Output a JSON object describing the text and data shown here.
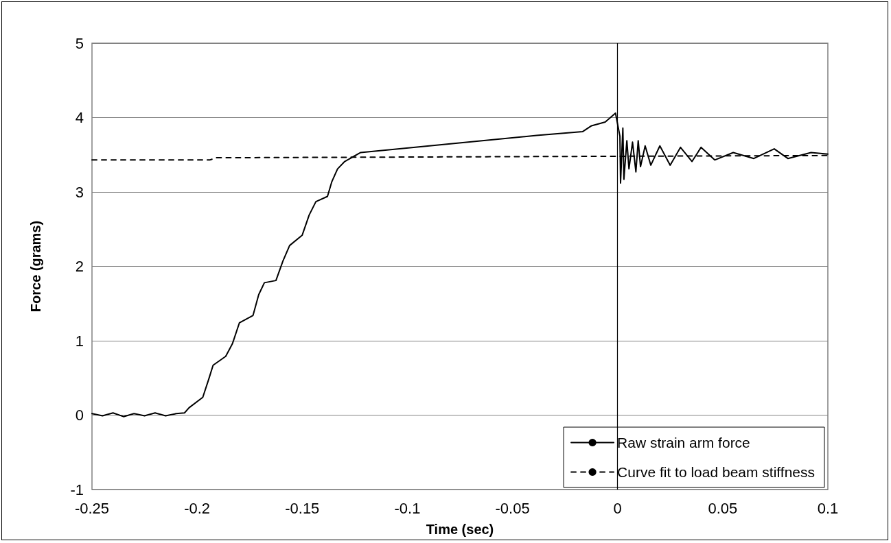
{
  "chart_data": {
    "type": "line",
    "xlabel": "Time (sec)",
    "ylabel": "Force (grams)",
    "xlim": [
      -0.25,
      0.1
    ],
    "xticks": [
      -0.25,
      -0.2,
      -0.15,
      -0.1,
      -0.05,
      0,
      0.05,
      0.1
    ],
    "ylim": [
      -1,
      5
    ],
    "yticks": [
      -1,
      0,
      1,
      2,
      3,
      4,
      5
    ],
    "grid": "y",
    "legend": "bottom right",
    "marker": "none",
    "ref_lines": [
      {
        "axis": "x",
        "value": 0,
        "color": "#000000"
      }
    ],
    "series": [
      {
        "name": "Raw strain arm force",
        "color": "#000000",
        "line_style": "solid",
        "x": [
          -0.25,
          -0.245,
          -0.24,
          -0.235,
          -0.23,
          -0.225,
          -0.22,
          -0.215,
          -0.21,
          -0.206,
          -0.2038,
          -0.1973,
          -0.1945,
          -0.1924,
          -0.1864,
          -0.1832,
          -0.1799,
          -0.1734,
          -0.1707,
          -0.168,
          -0.1625,
          -0.1592,
          -0.156,
          -0.15,
          -0.1467,
          -0.1435,
          -0.138,
          -0.1359,
          -0.1332,
          -0.1298,
          -0.1222,
          -0.1037,
          -0.082,
          -0.0602,
          -0.0385,
          -0.0167,
          -0.0124,
          -0.0059,
          -0.001,
          0.0011,
          0.0014,
          0.0025,
          0.003,
          0.0044,
          0.0054,
          0.0071,
          0.0087,
          0.0098,
          0.0109,
          0.0131,
          0.0158,
          0.0201,
          0.025,
          0.0299,
          0.0354,
          0.0397,
          0.0462,
          0.055,
          0.0648,
          0.0745,
          0.081,
          0.092,
          0.1
        ],
        "values": [
          0.02,
          -0.01,
          0.03,
          -0.02,
          0.02,
          -0.01,
          0.03,
          -0.01,
          0.02,
          0.03,
          0.1,
          0.24,
          0.48,
          0.67,
          0.79,
          0.96,
          1.24,
          1.34,
          1.62,
          1.78,
          1.81,
          2.07,
          2.28,
          2.42,
          2.69,
          2.87,
          2.94,
          3.14,
          3.31,
          3.41,
          3.53,
          3.58,
          3.64,
          3.7,
          3.76,
          3.81,
          3.89,
          3.94,
          4.06,
          3.75,
          3.12,
          3.86,
          3.17,
          3.69,
          3.31,
          3.67,
          3.27,
          3.69,
          3.34,
          3.62,
          3.36,
          3.62,
          3.36,
          3.6,
          3.41,
          3.6,
          3.43,
          3.53,
          3.45,
          3.58,
          3.45,
          3.53,
          3.51
        ]
      },
      {
        "name": "Curve fit to load beam stiffness",
        "color": "#000000",
        "line_style": "dashed",
        "x": [
          -0.25,
          -0.194,
          -0.191,
          0,
          0.1
        ],
        "values": [
          3.43,
          3.43,
          3.46,
          3.48,
          3.49
        ]
      }
    ]
  }
}
